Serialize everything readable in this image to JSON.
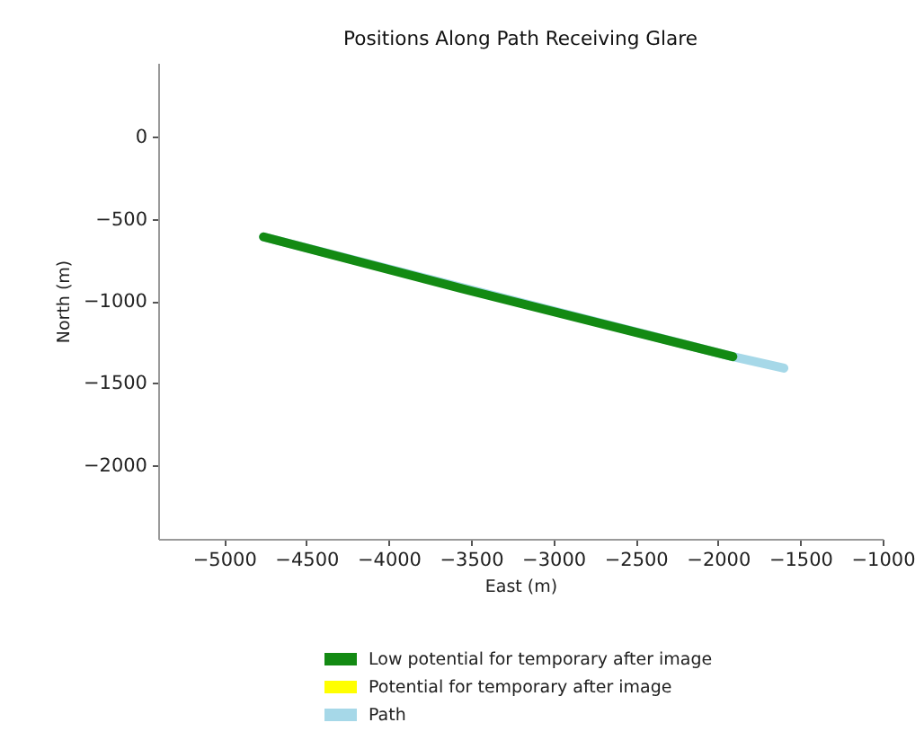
{
  "chart_data": {
    "type": "line",
    "title": "Positions Along Path Receiving Glare",
    "xlabel": "East (m)",
    "ylabel": "North (m)",
    "xlim": [
      -5400,
      -1000
    ],
    "xticks": [
      {
        "value": -5000,
        "label": "−5000"
      },
      {
        "value": -4500,
        "label": "−4500"
      },
      {
        "value": -4000,
        "label": "−4000"
      },
      {
        "value": -3500,
        "label": "−3500"
      },
      {
        "value": -3000,
        "label": "−3000"
      },
      {
        "value": -2500,
        "label": "−2500"
      },
      {
        "value": -2000,
        "label": "−2000"
      },
      {
        "value": -1500,
        "label": "−1500"
      },
      {
        "value": -1000,
        "label": "−1000"
      }
    ],
    "ylim": [
      -2450,
      450
    ],
    "yticks": [
      0,
      {
        "value": -500,
        "label": "−500"
      },
      {
        "value": -1000,
        "label": "−1000"
      },
      {
        "value": -1500,
        "label": "−1500"
      },
      {
        "value": -2000,
        "label": "−2000"
      }
    ],
    "series": [
      {
        "name": "Low potential for temporary after image",
        "color": "#138a13",
        "x": [
          -4760,
          -3500,
          -1910
        ],
        "values": [
          -610,
          -940,
          -1340
        ]
      },
      {
        "name": "Potential for temporary after image",
        "color": "#ffff00"
      },
      {
        "name": "Path",
        "color": "#a6d8e8",
        "x": [
          -4760,
          -1910,
          -1600
        ],
        "values": [
          -610,
          -1340,
          -1410
        ]
      }
    ],
    "legend": "bottom",
    "grid": false
  }
}
